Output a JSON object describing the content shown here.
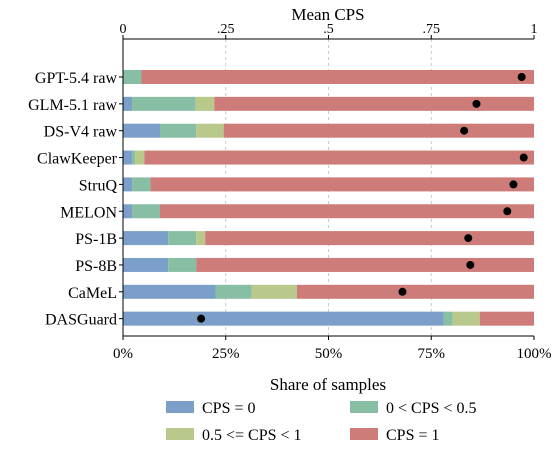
{
  "chart_data": {
    "type": "bar",
    "stacked": true,
    "orientation": "horizontal",
    "xlabel": "Share of samples",
    "top_axis_label": "Mean CPS",
    "x_ticks": [
      "0%",
      "25%",
      "50%",
      "75%",
      "100%"
    ],
    "top_ticks": [
      "0",
      ".25",
      ".5",
      ".75",
      "1"
    ],
    "xlim": [
      0,
      100
    ],
    "top_xlim": [
      0,
      1
    ],
    "categories": [
      "GPT-5.4 raw",
      "GLM-5.1 raw",
      "DS-V4 raw",
      "ClawKeeper",
      "StruQ",
      "MELON",
      "PS-1B",
      "PS-8B",
      "CaMeL",
      "DASGuard"
    ],
    "series": [
      {
        "name": "CPS = 0",
        "color": "#7b9fc9",
        "values": [
          0,
          2.2,
          9,
          2.2,
          2.2,
          2.2,
          11,
          11,
          22.5,
          78
        ]
      },
      {
        "name": "0 < CPS < 0.5",
        "color": "#88bfa4",
        "values": [
          4.5,
          15.5,
          8.8,
          0.8,
          4.5,
          6.8,
          6.8,
          6.8,
          8.8,
          2.2
        ]
      },
      {
        "name": "0.5 <= CPS < 1",
        "color": "#b8c98b",
        "values": [
          0,
          4.5,
          6.7,
          2.2,
          0,
          0,
          2.2,
          0,
          11,
          6.6
        ]
      },
      {
        "name": "CPS = 1",
        "color": "#cd7c79",
        "values": [
          95.5,
          77.8,
          75.5,
          94.8,
          93.3,
          91,
          80,
          82.2,
          57.7,
          13.2
        ]
      }
    ],
    "mean_cps": [
      0.97,
      0.86,
      0.83,
      0.975,
      0.95,
      0.935,
      0.84,
      0.845,
      0.68,
      0.19
    ],
    "legend_position": "bottom"
  }
}
